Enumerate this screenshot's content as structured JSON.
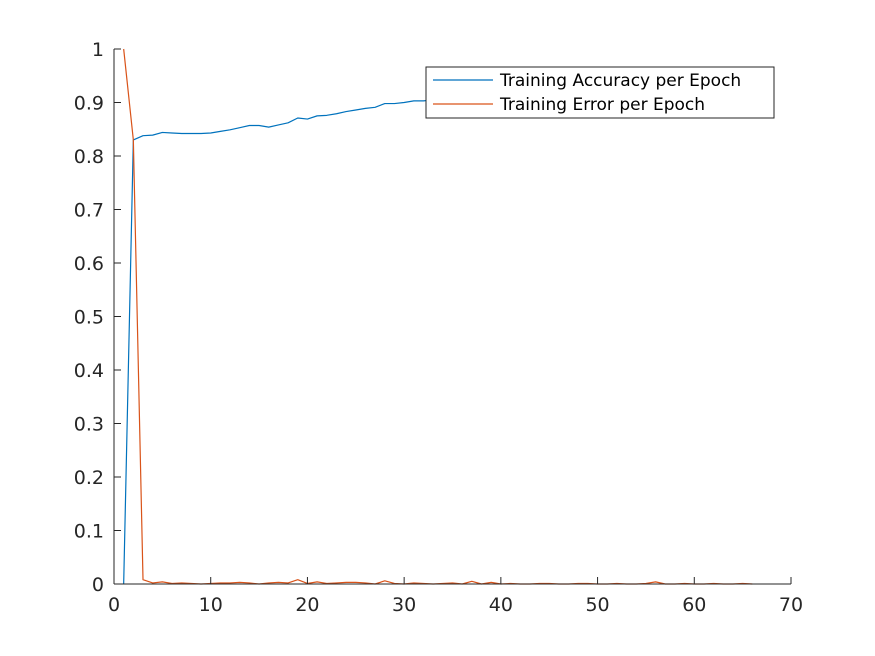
{
  "chart_data": {
    "type": "line",
    "title": "",
    "xlabel": "",
    "ylabel": "",
    "xlim": [
      0,
      70
    ],
    "ylim": [
      0,
      1
    ],
    "xticks": [
      0,
      10,
      20,
      30,
      40,
      50,
      60,
      70
    ],
    "yticks": [
      0,
      0.1,
      0.2,
      0.3,
      0.4,
      0.5,
      0.6,
      0.7,
      0.8,
      0.9,
      1
    ],
    "grid": false,
    "legend_position": "top-right",
    "series": [
      {
        "name": "Training Accuracy per Epoch",
        "color": "#0072BD",
        "x": [
          1,
          2,
          3,
          4,
          5,
          6,
          7,
          8,
          9,
          10,
          11,
          12,
          13,
          14,
          15,
          16,
          17,
          18,
          19,
          20,
          21,
          22,
          23,
          24,
          25,
          26,
          27,
          28,
          29,
          30,
          31,
          32,
          33
        ],
        "y": [
          0.0,
          0.83,
          0.838,
          0.839,
          0.844,
          0.843,
          0.842,
          0.842,
          0.842,
          0.843,
          0.846,
          0.849,
          0.853,
          0.857,
          0.857,
          0.854,
          0.858,
          0.862,
          0.871,
          0.869,
          0.875,
          0.876,
          0.879,
          0.883,
          0.886,
          0.889,
          0.891,
          0.898,
          0.898,
          0.9,
          0.903,
          0.903,
          0.905
        ]
      },
      {
        "name": "Training Error per Epoch",
        "color": "#D95319",
        "x": [
          1,
          2,
          3,
          4,
          5,
          6,
          7,
          8,
          9,
          10,
          11,
          12,
          13,
          14,
          15,
          16,
          17,
          18,
          19,
          20,
          21,
          22,
          23,
          24,
          25,
          26,
          27,
          28,
          29,
          30,
          31,
          32,
          33,
          34,
          35,
          36,
          37,
          38,
          39,
          40,
          41,
          42,
          43,
          44,
          45,
          46,
          47,
          48,
          49,
          50,
          51,
          52,
          53,
          54,
          55,
          56,
          57,
          58,
          59,
          60,
          61,
          62,
          63,
          64,
          65,
          66
        ],
        "y": [
          1.0,
          0.83,
          0.008,
          0.002,
          0.004,
          0.001,
          0.002,
          0.001,
          0.0,
          0.001,
          0.002,
          0.002,
          0.003,
          0.002,
          0.0,
          0.002,
          0.003,
          0.002,
          0.008,
          0.001,
          0.004,
          0.001,
          0.002,
          0.003,
          0.003,
          0.002,
          0.0,
          0.006,
          0.001,
          0.0,
          0.002,
          0.001,
          0.0,
          0.001,
          0.002,
          0.0,
          0.005,
          0.0,
          0.003,
          0.0,
          0.001,
          0.0,
          0.0,
          0.001,
          0.001,
          0.0,
          0.0,
          0.001,
          0.001,
          0.0,
          0.0,
          0.001,
          0.0,
          0.0,
          0.001,
          0.004,
          0.0,
          0.0,
          0.001,
          0.0,
          0.0,
          0.001,
          0.0,
          0.0,
          0.001,
          0.0
        ]
      }
    ]
  }
}
